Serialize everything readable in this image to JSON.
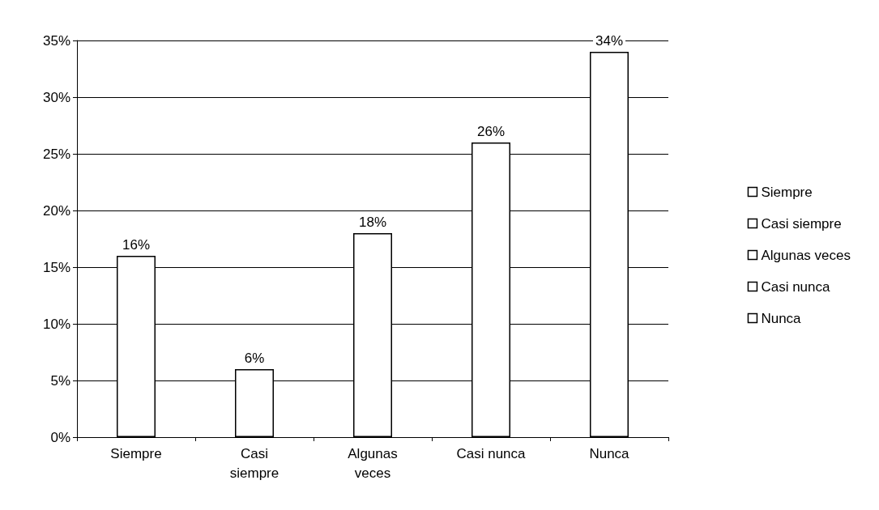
{
  "chart_data": {
    "type": "bar",
    "categories": [
      "Siempre",
      "Casi\nsiempre",
      "Algunas\nveces",
      "Casi nunca",
      "Nunca"
    ],
    "series": [
      {
        "name": "Siempre",
        "color": "#ffffff",
        "values": [
          16,
          null,
          null,
          null,
          null
        ],
        "value_labels": [
          "16%",
          null,
          null,
          null,
          null
        ]
      },
      {
        "name": "Casi siempre",
        "color": "#ffffff",
        "values": [
          null,
          6,
          null,
          null,
          null
        ],
        "value_labels": [
          null,
          "6%",
          null,
          null,
          null
        ]
      },
      {
        "name": "Algunas veces",
        "color": "#ffffff",
        "values": [
          null,
          null,
          18,
          null,
          null
        ],
        "value_labels": [
          null,
          null,
          "18%",
          null,
          null
        ]
      },
      {
        "name": "Casi nunca",
        "color": "#ffffff",
        "values": [
          null,
          null,
          null,
          26,
          null
        ],
        "value_labels": [
          null,
          null,
          null,
          "26%",
          null
        ]
      },
      {
        "name": "Nunca",
        "color": "#ffffff",
        "values": [
          null,
          null,
          null,
          null,
          34
        ],
        "value_labels": [
          null,
          null,
          null,
          null,
          "34%"
        ]
      }
    ],
    "ylim": [
      0,
      35
    ],
    "yticks": [
      {
        "value": 0,
        "label": "0%"
      },
      {
        "value": 5,
        "label": "5%"
      },
      {
        "value": 10,
        "label": "10%"
      },
      {
        "value": 15,
        "label": "15%"
      },
      {
        "value": 20,
        "label": "20%"
      },
      {
        "value": 25,
        "label": "25%"
      },
      {
        "value": 30,
        "label": "30%"
      },
      {
        "value": 35,
        "label": "35%"
      }
    ],
    "grid": "y",
    "legend": "right"
  }
}
